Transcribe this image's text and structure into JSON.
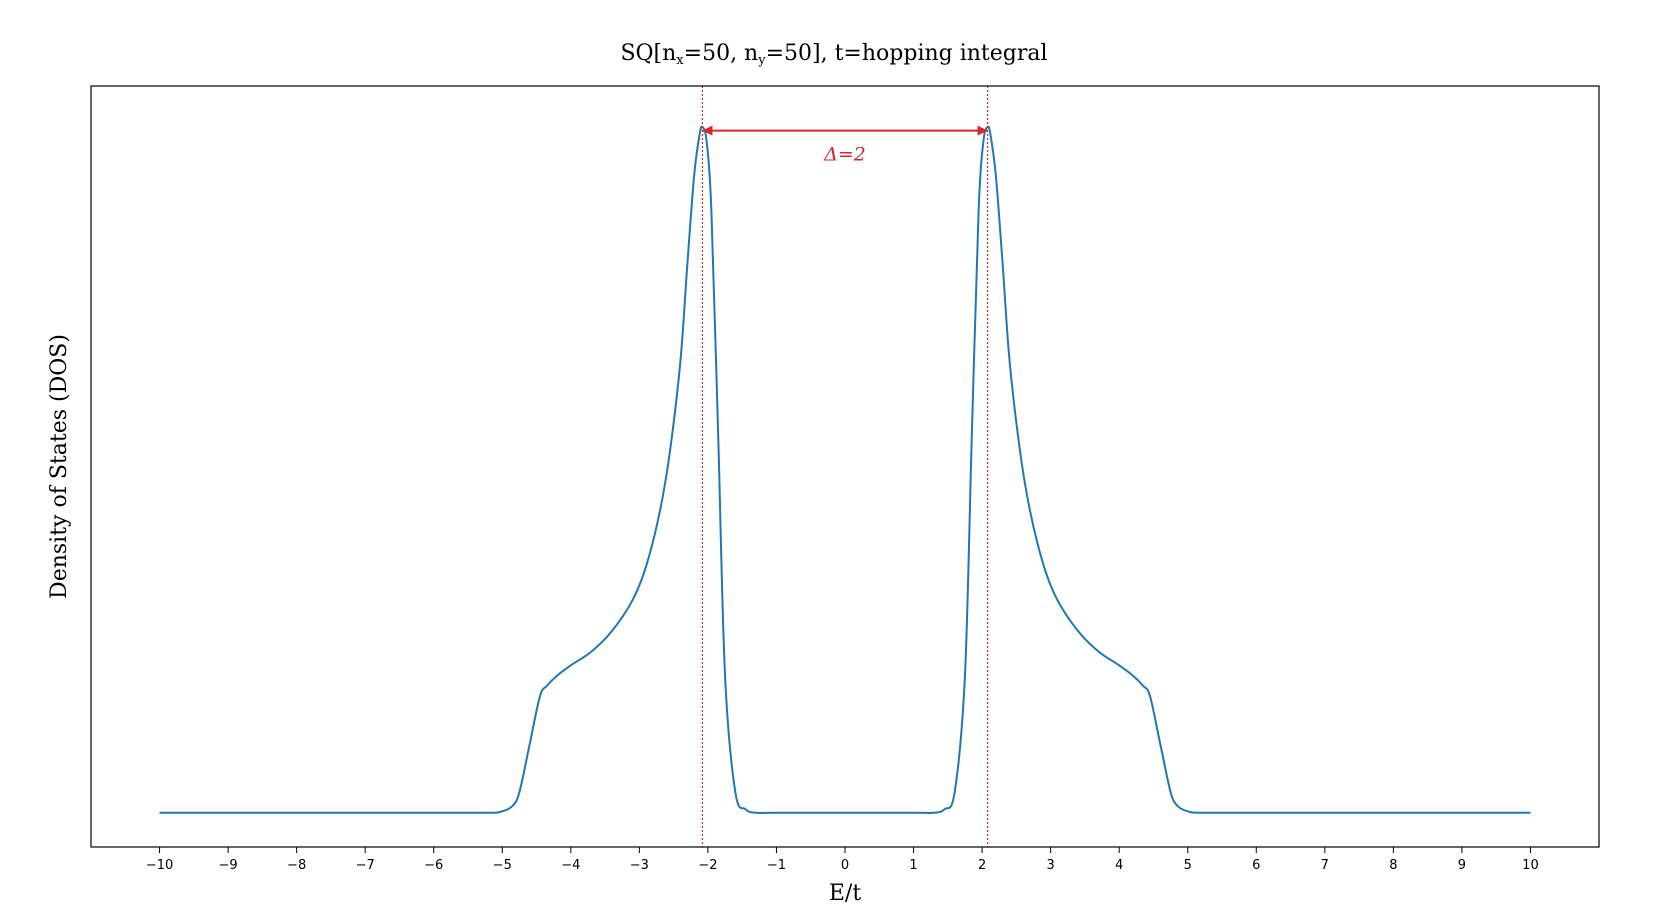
{
  "chart_data": {
    "type": "line",
    "title_parts": [
      "SQ[n",
      "x",
      "=50, n",
      "y",
      "=50], t=hopping integral"
    ],
    "xlabel": "E/t",
    "ylabel": "Density of States (DOS)",
    "xlim": [
      -11,
      11
    ],
    "ylim": [
      -0.05,
      1.06
    ],
    "xticks": [
      -10,
      -9,
      -8,
      -7,
      -6,
      -5,
      -4,
      -3,
      -2,
      -1,
      0,
      1,
      2,
      3,
      4,
      5,
      6,
      7,
      8,
      9,
      10
    ],
    "xtick_labels": [
      "−10",
      "−9",
      "−8",
      "−7",
      "−6",
      "−5",
      "−4",
      "−3",
      "−2",
      "−1",
      "0",
      "1",
      "2",
      "3",
      "4",
      "5",
      "6",
      "7",
      "8",
      "9",
      "10"
    ],
    "yticks_visible": false,
    "grid": false,
    "series": [
      {
        "color": "#1f77b4",
        "x": [
          -10,
          -6,
          -5.2,
          -5.0,
          -4.85,
          -4.75,
          -4.6,
          -4.45,
          -4.35,
          -4.2,
          -4.0,
          -3.7,
          -3.4,
          -3.1,
          -2.9,
          -2.7,
          -2.55,
          -2.4,
          -2.3,
          -2.2,
          -2.12,
          -2.08,
          -2.02,
          -1.95,
          -1.85,
          -1.75,
          -1.6,
          -1.45,
          -1.3,
          -1.0,
          0,
          1.0,
          1.3,
          1.45,
          1.6,
          1.75,
          1.85,
          1.95,
          2.02,
          2.08,
          2.12,
          2.2,
          2.3,
          2.4,
          2.55,
          2.7,
          2.9,
          3.1,
          3.4,
          3.7,
          4.0,
          4.2,
          4.35,
          4.45,
          4.6,
          4.75,
          4.85,
          5.0,
          5.2,
          6,
          10
        ],
        "y": [
          0.0,
          0.0,
          0.0,
          0.002,
          0.01,
          0.03,
          0.1,
          0.17,
          0.185,
          0.2,
          0.215,
          0.235,
          0.265,
          0.31,
          0.36,
          0.44,
          0.53,
          0.66,
          0.8,
          0.93,
          0.99,
          1.0,
          0.98,
          0.88,
          0.55,
          0.2,
          0.03,
          0.005,
          0.0,
          0.0,
          0.0,
          0.0,
          0.0,
          0.005,
          0.03,
          0.2,
          0.55,
          0.88,
          0.98,
          1.0,
          0.99,
          0.93,
          0.8,
          0.66,
          0.53,
          0.44,
          0.36,
          0.31,
          0.265,
          0.235,
          0.215,
          0.2,
          0.185,
          0.17,
          0.1,
          0.03,
          0.01,
          0.002,
          0.0,
          0.0,
          0.0
        ]
      }
    ],
    "vlines": [
      {
        "x": -2.08,
        "color": "#d62728",
        "style": "dotted"
      },
      {
        "x": 2.08,
        "color": "#d62728",
        "style": "dotted"
      }
    ],
    "annotation": {
      "text": "Δ=2",
      "color": "#d62728",
      "arrow_from": -2.08,
      "arrow_to": 2.08,
      "arrow_y": 0.995
    }
  }
}
